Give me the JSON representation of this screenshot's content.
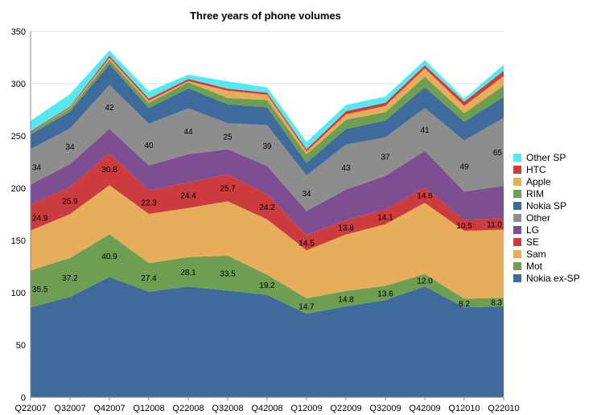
{
  "chart_data": {
    "type": "area",
    "title": "Three years of phone volumes",
    "xlabel": "",
    "ylabel": "",
    "stacked": true,
    "ylim": [
      0,
      350
    ],
    "yticks": [
      0,
      50,
      100,
      150,
      200,
      250,
      300,
      350
    ],
    "grid": true,
    "legend_position": "right",
    "categories": [
      "Q22007",
      "Q32007",
      "Q42007",
      "Q12008",
      "Q22008",
      "Q32008",
      "Q42008",
      "Q12009",
      "Q22009",
      "Q32009",
      "Q42009",
      "Q12010",
      "Q22010"
    ],
    "series": [
      {
        "name": "Nokia ex-SP",
        "color": "#3f6a9c",
        "values": [
          86,
          96,
          115,
          101,
          106,
          102,
          98,
          80,
          87,
          93,
          106,
          86,
          87
        ]
      },
      {
        "name": "Mot",
        "color": "#6e9e52",
        "values": [
          35.5,
          37.2,
          40.9,
          27.4,
          28.1,
          33.5,
          19.2,
          14.7,
          14.8,
          13.6,
          12.0,
          8.2,
          8.3
        ]
      },
      {
        "name": "Sam",
        "color": "#e8ad5a",
        "values": [
          38,
          42,
          47,
          47,
          47,
          52,
          53,
          46,
          54,
          59,
          68,
          65,
          65
        ]
      },
      {
        "name": "SE",
        "color": "#cc3b3d",
        "values": [
          24.9,
          25.9,
          30.8,
          22.3,
          24.4,
          25.7,
          24.2,
          14.5,
          13.8,
          14.1,
          14.6,
          10.5,
          11.0
        ]
      },
      {
        "name": "LG",
        "color": "#7d4e92",
        "values": [
          19,
          22,
          23,
          24,
          27,
          24,
          27,
          23,
          29,
          32,
          35,
          27,
          31
        ]
      },
      {
        "name": "Other",
        "color": "#8d8d8d",
        "values": [
          34,
          34,
          42,
          40,
          44,
          25,
          39,
          34,
          43,
          37,
          41,
          49,
          65
        ]
      },
      {
        "name": "Nokia SP",
        "color": "#3f6a9c",
        "values": [
          14,
          16,
          20,
          15,
          19,
          18,
          17,
          12,
          15,
          16,
          20,
          18,
          20
        ]
      },
      {
        "name": "RIM",
        "color": "#6e9e52",
        "values": [
          2,
          3,
          4,
          5,
          6,
          6,
          7,
          8,
          9,
          8,
          10,
          8,
          11
        ]
      },
      {
        "name": "Apple",
        "color": "#e8ad5a",
        "values": [
          0,
          1,
          2,
          2,
          1,
          7,
          5,
          3,
          5,
          6,
          8,
          7,
          9
        ]
      },
      {
        "name": "HTC",
        "color": "#cc3b3d",
        "values": [
          1,
          1,
          2,
          2,
          2,
          2,
          2,
          2,
          3,
          3,
          3,
          4,
          5
        ]
      },
      {
        "name": "Other SP",
        "color": "#55e8f2",
        "values": [
          10,
          12,
          5,
          7,
          4,
          7,
          5,
          7,
          6,
          6,
          5,
          3,
          6
        ]
      }
    ],
    "data_labels": {
      "Mot": [
        "35.5",
        "37.2",
        "40.9",
        "27.4",
        "28.1",
        "33.5",
        "19.2",
        "14.7",
        "14.8",
        "13.6",
        "12.0",
        "8.2",
        "8.3"
      ],
      "SE": [
        "24.9",
        "25.9",
        "30.8",
        "22.3",
        "24.4",
        "25.7",
        "24.2",
        "14.5",
        "13.8",
        "14.1",
        "14.6",
        "10.5",
        "11.0"
      ],
      "Other": [
        "34",
        "34",
        "42",
        "40",
        "44",
        "25",
        "39",
        "34",
        "43",
        "37",
        "41",
        "49",
        "65"
      ]
    },
    "legend_order": [
      "Other SP",
      "HTC",
      "Apple",
      "RIM",
      "Nokia SP",
      "Other",
      "LG",
      "SE",
      "Sam",
      "Mot",
      "Nokia ex-SP"
    ]
  }
}
